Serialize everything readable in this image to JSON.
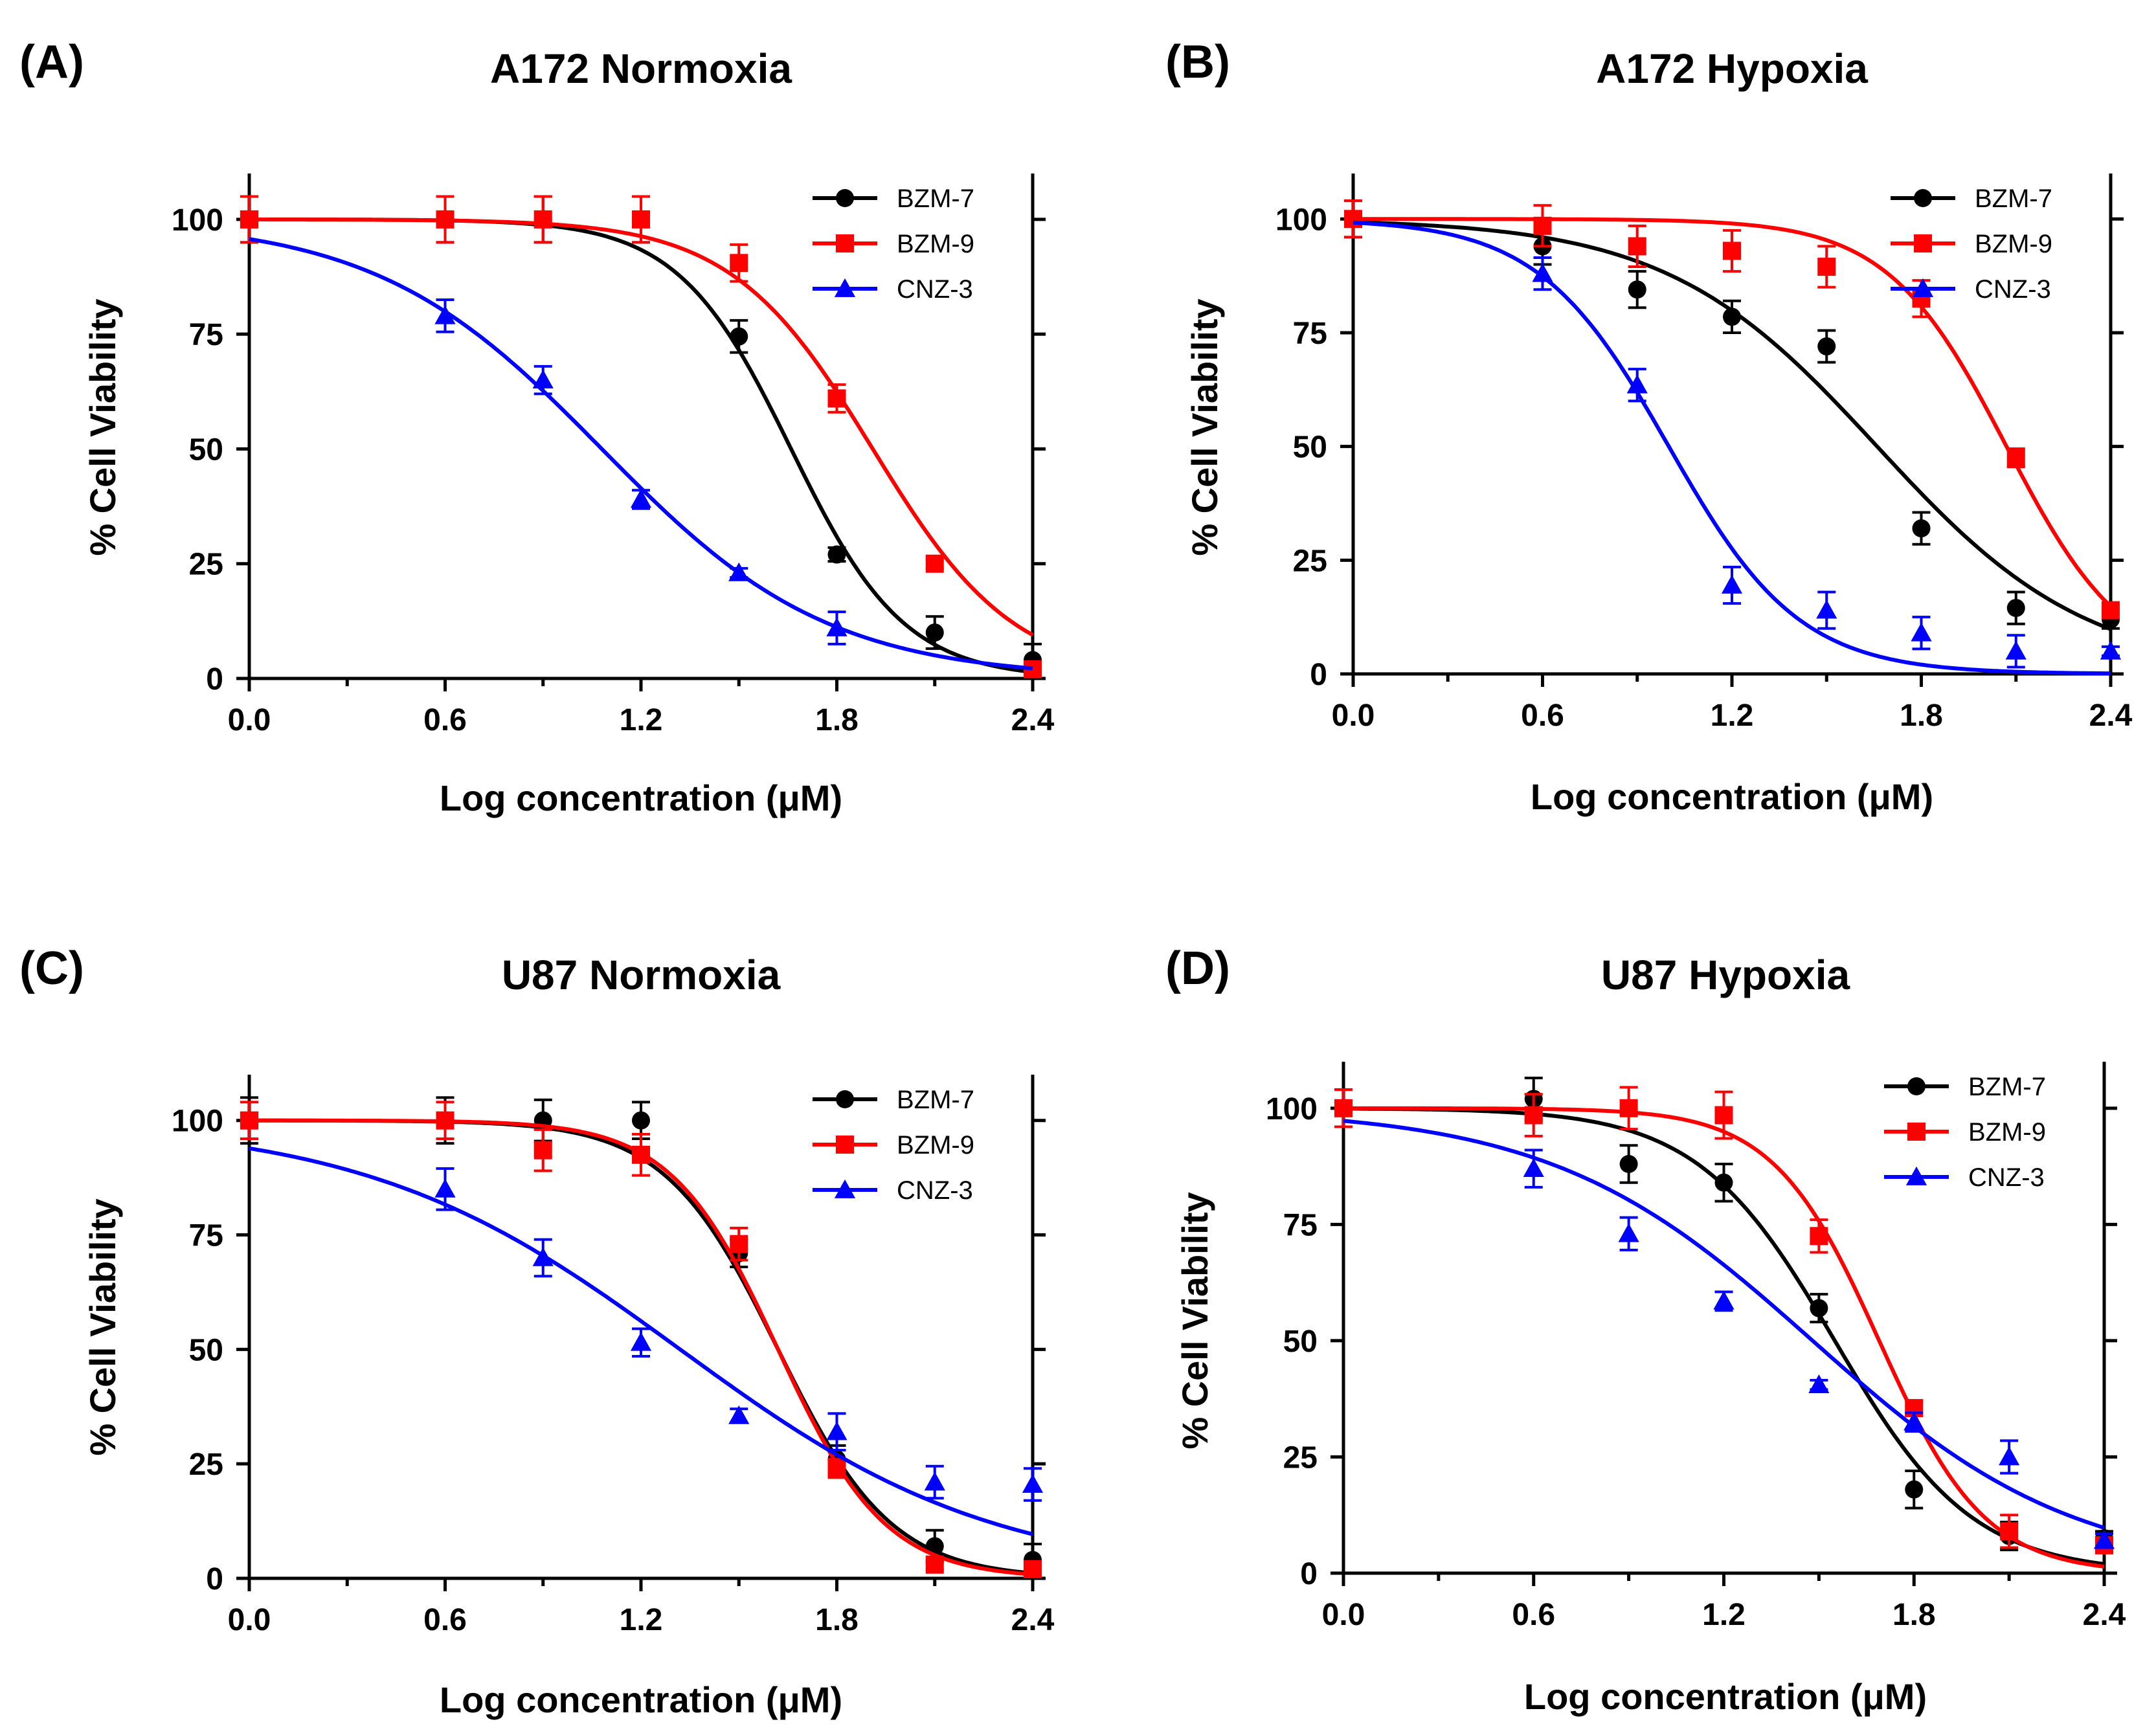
{
  "chart_data": [
    {
      "panel": "(A)",
      "type": "scatter",
      "title": "A172 Normoxia",
      "xlabel": "Log concentration (μM)",
      "ylabel": "% Cell Viability",
      "xlim": [
        0,
        2.4
      ],
      "ylim": [
        0,
        110
      ],
      "xticks": [
        "0.0",
        "0.6",
        "1.2",
        "1.8",
        "2.4"
      ],
      "yticks": [
        "0",
        "25",
        "50",
        "75",
        "100"
      ],
      "legend_position": "top-right",
      "series": [
        {
          "name": "BZM-7",
          "color": "#000000",
          "marker": "circle",
          "x": [
            0,
            0.6,
            0.9,
            1.2,
            1.5,
            1.8,
            2.1,
            2.4
          ],
          "y": [
            100,
            100,
            100,
            100,
            74.5,
            27,
            10,
            4
          ],
          "err": [
            5,
            5,
            5,
            5,
            3.5,
            1.5,
            3.5,
            3.5
          ],
          "fit": {
            "top": 100,
            "bottom": 0,
            "logec50": 1.66,
            "hill": 2.5
          }
        },
        {
          "name": "BZM-9",
          "color": "#ff0000",
          "marker": "square",
          "x": [
            0,
            0.6,
            0.9,
            1.2,
            1.5,
            1.8,
            2.1,
            2.4
          ],
          "y": [
            100,
            100,
            100,
            100,
            90.5,
            61,
            25,
            2
          ],
          "err": [
            5,
            5,
            5,
            5,
            4,
            3,
            1,
            1.5
          ],
          "fit": {
            "top": 100,
            "bottom": 0,
            "logec50": 1.91,
            "hill": 2.0
          }
        },
        {
          "name": "CNZ-3",
          "color": "#0000ff",
          "marker": "triangle",
          "x": [
            0.6,
            0.9,
            1.2,
            1.5,
            1.8
          ],
          "y": [
            79,
            65,
            39,
            23,
            11
          ],
          "err": [
            3.5,
            3,
            2,
            1,
            3.5
          ],
          "fit": {
            "top": 100,
            "bottom": 0,
            "logec50": 1.08,
            "hill": 1.25
          }
        }
      ]
    },
    {
      "panel": "(B)",
      "type": "scatter",
      "title": "A172 Hypoxia",
      "xlabel": "Log concentration (μM)",
      "ylabel": "% Cell Viability",
      "xlim": [
        0,
        2.4
      ],
      "ylim": [
        0,
        110
      ],
      "xticks": [
        "0.0",
        "0.6",
        "1.2",
        "1.8",
        "2.4"
      ],
      "yticks": [
        "0",
        "25",
        "50",
        "75",
        "100"
      ],
      "legend_position": "top-right",
      "series": [
        {
          "name": "BZM-7",
          "color": "#000000",
          "marker": "circle",
          "x": [
            0,
            0.6,
            0.9,
            1.2,
            1.5,
            1.8,
            2.1,
            2.4
          ],
          "y": [
            100,
            94,
            84.5,
            78.5,
            72,
            32,
            14.5,
            12
          ],
          "err": [
            4,
            4,
            4,
            3.5,
            3.5,
            3.5,
            3.5,
            2
          ],
          "fit": {
            "top": 100,
            "bottom": 0,
            "logec50": 1.66,
            "hill": 1.3
          }
        },
        {
          "name": "BZM-9",
          "color": "#ff0000",
          "marker": "square",
          "x": [
            0,
            0.6,
            0.9,
            1.2,
            1.5,
            1.8,
            2.1,
            2.4
          ],
          "y": [
            100,
            98.5,
            94,
            93,
            89.5,
            82.5,
            47.5,
            14
          ],
          "err": [
            4,
            4.5,
            4.5,
            4.5,
            4.5,
            4,
            2,
            1.5
          ],
          "fit": {
            "top": 100,
            "bottom": 0,
            "logec50": 2.07,
            "hill": 2.3
          }
        },
        {
          "name": "CNZ-3",
          "color": "#0000ff",
          "marker": "triangle",
          "x": [
            0.6,
            0.9,
            1.2,
            1.5,
            1.8,
            2.1,
            2.4
          ],
          "y": [
            88,
            63.5,
            19.5,
            14,
            9,
            5,
            5
          ],
          "err": [
            3.5,
            3.5,
            4,
            4,
            3.5,
            3.5,
            1
          ],
          "fit": {
            "top": 100,
            "bottom": 0,
            "logec50": 1.0,
            "hill": 2.1
          }
        }
      ]
    },
    {
      "panel": "(C)",
      "type": "scatter",
      "title": "U87 Normoxia",
      "xlabel": "Log concentration (μM)",
      "ylabel": "% Cell Viability",
      "xlim": [
        0,
        2.4
      ],
      "ylim": [
        0,
        110
      ],
      "xticks": [
        "0.0",
        "0.6",
        "1.2",
        "1.8",
        "2.4"
      ],
      "yticks": [
        "0",
        "25",
        "50",
        "75",
        "100"
      ],
      "legend_position": "top-right",
      "series": [
        {
          "name": "BZM-7",
          "color": "#000000",
          "marker": "circle",
          "x": [
            0,
            0.6,
            0.9,
            1.2,
            1.5,
            1.8,
            2.1,
            2.4
          ],
          "y": [
            100,
            100,
            100,
            100,
            71,
            26,
            7,
            4
          ],
          "err": [
            5,
            5,
            4.5,
            4,
            3,
            3,
            3.5,
            3.5
          ],
          "fit": {
            "top": 100,
            "bottom": 0,
            "logec50": 1.62,
            "hill": 2.5
          }
        },
        {
          "name": "BZM-9",
          "color": "#ff0000",
          "marker": "square",
          "x": [
            0,
            0.6,
            0.9,
            1.2,
            1.5,
            1.8,
            2.1,
            2.4
          ],
          "y": [
            100,
            100,
            93.5,
            92.5,
            73,
            24,
            3,
            2
          ],
          "err": [
            4,
            4,
            4.5,
            4.5,
            3.5,
            2,
            1,
            1
          ],
          "fit": {
            "top": 100,
            "bottom": 0,
            "logec50": 1.62,
            "hill": 2.65
          }
        },
        {
          "name": "CNZ-3",
          "color": "#0000ff",
          "marker": "triangle",
          "x": [
            0.6,
            0.9,
            1.2,
            1.5,
            1.8,
            2.1,
            2.4
          ],
          "y": [
            85,
            70,
            51.5,
            35.5,
            32,
            21,
            20.5
          ],
          "err": [
            4.5,
            4,
            3,
            1.5,
            4,
            3.5,
            3.5
          ],
          "fit": {
            "top": 100,
            "bottom": 0,
            "logec50": 1.32,
            "hill": 0.9
          }
        }
      ]
    },
    {
      "panel": "(D)",
      "type": "scatter",
      "title": "U87 Hypoxia",
      "xlabel": "Log concentration (μM)",
      "ylabel": "% Cell Viability",
      "xlim": [
        0,
        2.4
      ],
      "ylim": [
        0,
        110
      ],
      "xticks": [
        "0.0",
        "0.6",
        "1.2",
        "1.8",
        "2.4"
      ],
      "yticks": [
        "0",
        "25",
        "50",
        "75",
        "100"
      ],
      "legend_position": "top-right",
      "series": [
        {
          "name": "BZM-7",
          "color": "#000000",
          "marker": "circle",
          "x": [
            0,
            0.6,
            0.9,
            1.2,
            1.5,
            1.8,
            2.1,
            2.4
          ],
          "y": [
            100,
            102,
            88,
            84,
            57,
            18,
            8,
            7.5
          ],
          "err": [
            4,
            4.5,
            4,
            4,
            3,
            4,
            3,
            1.5
          ],
          "fit": {
            "top": 100,
            "bottom": 0,
            "logec50": 1.55,
            "hill": 2.0
          }
        },
        {
          "name": "BZM-9",
          "color": "#ff0000",
          "marker": "square",
          "x": [
            0,
            0.6,
            0.9,
            1.2,
            1.5,
            1.8,
            2.1,
            2.4
          ],
          "y": [
            100,
            98.5,
            100,
            98.5,
            72.5,
            35.5,
            9,
            6
          ],
          "err": [
            4,
            4.5,
            4.5,
            5,
            3.5,
            1.5,
            3.5,
            1.5
          ],
          "fit": {
            "top": 100,
            "bottom": 0,
            "logec50": 1.69,
            "hill": 2.6
          }
        },
        {
          "name": "CNZ-3",
          "color": "#0000ff",
          "marker": "triangle",
          "x": [
            0.6,
            0.9,
            1.2,
            1.5,
            1.8,
            2.1,
            2.4
          ],
          "y": [
            87,
            73,
            58.5,
            40.5,
            32.5,
            25,
            7
          ],
          "err": [
            4,
            3.5,
            2,
            1,
            2,
            3.5,
            1.5
          ],
          "fit": {
            "top": 100,
            "bottom": 0,
            "logec50": 1.48,
            "hill": 1.05
          }
        }
      ]
    }
  ]
}
